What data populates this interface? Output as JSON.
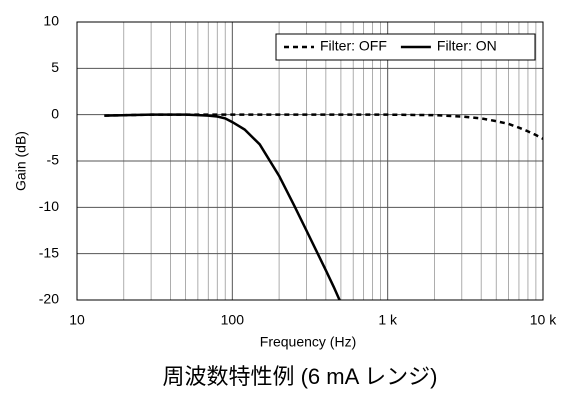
{
  "chart_data": {
    "type": "line",
    "caption": "周波数特性例 (6 mA レンジ)",
    "xlabel": "Frequency (Hz)",
    "ylabel": "Gain (dB)",
    "xscale": "log",
    "xlim": [
      10,
      10000
    ],
    "xticks": [
      10,
      100,
      {
        "value": 1000,
        "label": "1 k"
      },
      {
        "value": 10000,
        "label": "10 k"
      }
    ],
    "xminor": [
      20,
      30,
      40,
      50,
      60,
      70,
      80,
      90,
      200,
      300,
      400,
      500,
      600,
      700,
      800,
      900,
      2000,
      3000,
      4000,
      5000,
      6000,
      7000,
      8000,
      9000
    ],
    "ylim": [
      -20,
      10
    ],
    "yticks": [
      10,
      5,
      0,
      -5,
      -10,
      -15,
      -20
    ],
    "grid": true,
    "legend": "upper right",
    "series": [
      {
        "name": "Filter: OFF",
        "color": "#000000",
        "linestyle": "dashed",
        "x": [
          15,
          30,
          100,
          300,
          1000,
          2000,
          3000,
          4000,
          5000,
          6000,
          7000,
          8000,
          9000,
          10000
        ],
        "values": [
          -0.1,
          0,
          0,
          0,
          0,
          -0.05,
          -0.2,
          -0.4,
          -0.7,
          -1.0,
          -1.4,
          -1.8,
          -2.2,
          -2.6
        ]
      },
      {
        "name": "Filter: ON",
        "color": "#000000",
        "linestyle": "solid",
        "x": [
          15,
          30,
          50,
          60,
          70,
          80,
          90,
          100,
          120,
          150,
          200,
          250,
          300,
          350,
          400,
          450,
          490
        ],
        "values": [
          -0.1,
          0,
          0,
          -0.05,
          -0.1,
          -0.2,
          -0.4,
          -0.8,
          -1.6,
          -3.2,
          -6.6,
          -9.8,
          -12.5,
          -14.8,
          -16.8,
          -18.6,
          -20
        ]
      }
    ]
  }
}
